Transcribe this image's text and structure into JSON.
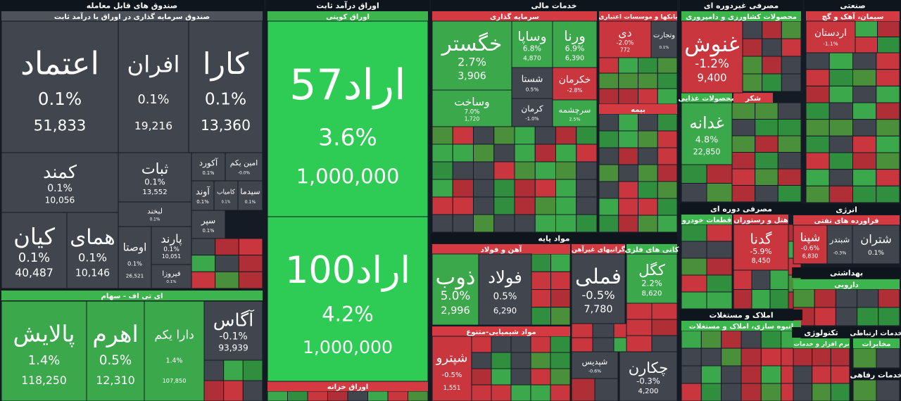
{
  "headers": [
    {
      "text": "صندوق های قابل معامله",
      "kind": "sector"
    },
    {
      "text": "صندوق سرمایه گذاری در اوراق با درآمد ثابت",
      "kind": "gray"
    },
    {
      "text": "ای تی اف - سهام",
      "kind": "green"
    },
    {
      "text": "اوراق درآمد ثابت",
      "kind": "sector"
    },
    {
      "text": "اوراق کوپنی",
      "kind": "green"
    },
    {
      "text": "اوراق خزانه",
      "kind": "red"
    },
    {
      "text": "خدمات مالی",
      "kind": "sector"
    },
    {
      "text": "سرمایه گذاری",
      "kind": "red"
    },
    {
      "text": "بانکها و موسسات اعتباری",
      "kind": "red"
    },
    {
      "text": "بیمه",
      "kind": "red"
    },
    {
      "text": "مواد پایه",
      "kind": "sector"
    },
    {
      "text": "آهن و فولاد",
      "kind": "red"
    },
    {
      "text": "گرانیهای غیرآهن",
      "kind": "red"
    },
    {
      "text": "کانی های فلزی",
      "kind": "green"
    },
    {
      "text": "مواد شیمیایی-متنوع",
      "kind": "red"
    },
    {
      "text": "مصرفی غیردوره ای",
      "kind": "sector"
    },
    {
      "text": "محصولات کشاورزی و دامپروری",
      "kind": "green"
    },
    {
      "text": "محصولات غذایی",
      "kind": "green"
    },
    {
      "text": "شکر",
      "kind": "red"
    },
    {
      "text": "مصرفی دوره ای",
      "kind": "sector"
    },
    {
      "text": "قطعات خودرو",
      "kind": "green"
    },
    {
      "text": "هتل و رستوران",
      "kind": "red"
    },
    {
      "text": "املاک و مستغلات",
      "kind": "sector"
    },
    {
      "text": "انبوه سازی، املاک و مستغلات",
      "kind": "green"
    },
    {
      "text": "صنعتی",
      "kind": "sector"
    },
    {
      "text": "سیمان، آهک و گچ",
      "kind": "red"
    },
    {
      "text": "انرژی",
      "kind": "sector"
    },
    {
      "text": "فراورده های نفتی",
      "kind": "red"
    },
    {
      "text": "بهداشتی",
      "kind": "sector"
    },
    {
      "text": "دارویی",
      "kind": "green"
    },
    {
      "text": "تکنولوژی",
      "kind": "sector"
    },
    {
      "text": "نرم افزار و خدمات",
      "kind": "green"
    },
    {
      "text": "خدمات ارتباطی",
      "kind": "sector"
    },
    {
      "text": "مخابرات",
      "kind": "green"
    },
    {
      "text": "خدمات رفاهی",
      "kind": "sector"
    }
  ],
  "tiles": [
    {
      "label": "اعتماد",
      "change": "0.1%",
      "volume": "51,833",
      "tone": "gray"
    },
    {
      "label": "افران",
      "change": "0.1%",
      "volume": "19,216",
      "tone": "gray"
    },
    {
      "label": "کارا",
      "change": "0.1%",
      "volume": "13,360",
      "tone": "gray"
    },
    {
      "label": "کمند",
      "change": "0.1%",
      "volume": "10,056",
      "tone": "gray"
    },
    {
      "label": "کیان",
      "change": "0.1%",
      "volume": "40,487",
      "tone": "gray"
    },
    {
      "label": "همای",
      "change": "0.1%",
      "volume": "10,146",
      "tone": "gray"
    },
    {
      "label": "ثبات",
      "change": "0.1%",
      "volume": "13,552",
      "tone": "gray"
    },
    {
      "label": "لبخند",
      "change": "0.1%",
      "tone": "gray"
    },
    {
      "label": "اوصتا",
      "change": "0.1%",
      "volume": "26,521",
      "tone": "gray"
    },
    {
      "label": "پارند",
      "change": "0.1%",
      "volume": "10,051",
      "tone": "gray"
    },
    {
      "label": "فیروزا",
      "change": "0.1%",
      "tone": "gray"
    },
    {
      "label": "آکورد",
      "change": "0.1%",
      "tone": "gray"
    },
    {
      "label": "امین یکم",
      "change": "-0.0%",
      "tone": "gray"
    },
    {
      "label": "آوند",
      "change": "0.1%",
      "tone": "gray"
    },
    {
      "label": "کامیاب",
      "change": "0.1%",
      "tone": "gray"
    },
    {
      "label": "سیدما",
      "change": "0.1%",
      "tone": "gray"
    },
    {
      "label": "سپر",
      "change": "0.1%",
      "tone": "gray"
    },
    {
      "label": "پالایش",
      "change": "1.4%",
      "volume": "118,250",
      "tone": "green"
    },
    {
      "label": "اهرم",
      "change": "0.5%",
      "volume": "12,310",
      "tone": "green"
    },
    {
      "label": "دارا یکم",
      "change": "1.4%",
      "volume": "107,850",
      "tone": "green"
    },
    {
      "label": "آگاس",
      "change": "-0.1%",
      "volume": "93,939",
      "tone": "gray"
    },
    {
      "label": "اراد57",
      "change": "3.6%",
      "volume": "1,000,000",
      "tone": "bright"
    },
    {
      "label": "اراد100",
      "change": "4.2%",
      "volume": "1,000,000",
      "tone": "bright"
    },
    {
      "label": "خگستر",
      "change": "2.7%",
      "volume": "3,906",
      "tone": "green"
    },
    {
      "label": "وساپا",
      "change": "6.8%",
      "volume": "4,870",
      "tone": "green"
    },
    {
      "label": "ورنا",
      "change": "6.9%",
      "volume": "6,390",
      "tone": "green"
    },
    {
      "label": "وساخت",
      "change": "7.0%",
      "volume": "1,720",
      "tone": "green"
    },
    {
      "label": "شستا",
      "change": "0.5%",
      "tone": "gray"
    },
    {
      "label": "خکرمان",
      "change": "-2.8%",
      "tone": "red"
    },
    {
      "label": "کرمان",
      "change": "-1.0%",
      "tone": "gray"
    },
    {
      "label": "سرچشمه",
      "change": "2.5%",
      "tone": "green"
    },
    {
      "label": "دی",
      "change": "-2.0%",
      "volume": "772",
      "tone": "red"
    },
    {
      "label": "وتجارت",
      "change": "0.1%",
      "tone": "gray"
    },
    {
      "label": "ذوب",
      "change": "5.0%",
      "volume": "2,996",
      "tone": "green"
    },
    {
      "label": "فولاد",
      "change": "0.5%",
      "volume": "6,290",
      "tone": "gray"
    },
    {
      "label": "فملی",
      "change": "-0.5%",
      "volume": "7,780",
      "tone": "gray"
    },
    {
      "label": "کگل",
      "change": "2.2%",
      "volume": "8,620",
      "tone": "green"
    },
    {
      "label": "شپترو",
      "change": "-0.5%",
      "volume": "1,551",
      "tone": "red"
    },
    {
      "label": "شپدیس",
      "change": "-0.6%",
      "tone": "gray"
    },
    {
      "label": "چکارن",
      "change": "-0.3%",
      "volume": "4,200",
      "tone": "gray"
    },
    {
      "label": "غنوش",
      "change": "-1.2%",
      "volume": "9,400",
      "tone": "red"
    },
    {
      "label": "غدانه",
      "change": "4.8%",
      "volume": "22,850",
      "tone": "green"
    },
    {
      "label": "گدنا",
      "change": "-5.9%",
      "volume": "8,450",
      "tone": "red"
    },
    {
      "label": "اردستان",
      "change": "-1.1%",
      "tone": "red"
    },
    {
      "label": "شپنا",
      "change": "-0.6%",
      "volume": "6,830",
      "tone": "red"
    },
    {
      "label": "شبندر",
      "change": "-0.3%",
      "tone": "gray"
    },
    {
      "label": "شتران",
      "change": "0.1%",
      "tone": "gray"
    }
  ]
}
